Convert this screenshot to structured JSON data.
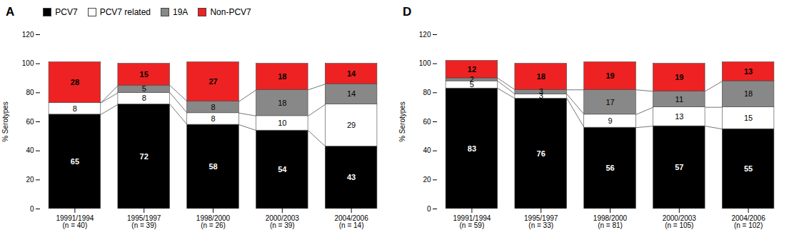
{
  "chart_data": [
    {
      "type": "bar",
      "stacked": true,
      "data_labels": true,
      "title": "A",
      "legend": "upper left",
      "categories": [
        "19991/1994\n(n = 40)",
        "1995/1997\n(n = 39)",
        "1998/2000\n(n = 26)",
        "2000/2003\n(n = 39)",
        "2004/2006\n(n = 14)"
      ],
      "series": [
        {
          "name": "PCV7",
          "color": "#000000",
          "values": [
            65,
            72,
            58,
            54,
            43
          ]
        },
        {
          "name": "PCV7 related",
          "color": "#ffffff",
          "values": [
            8,
            8,
            8,
            10,
            29
          ]
        },
        {
          "name": "19A",
          "color": "#888888",
          "values": [
            0,
            5,
            8,
            18,
            14
          ]
        },
        {
          "name": "Non-PCV7",
          "color": "#ee2222",
          "values": [
            28,
            15,
            27,
            18,
            14
          ]
        }
      ],
      "ylabel": "% Serotypes",
      "ylim": [
        0,
        120
      ],
      "yticks": [
        0,
        20,
        40,
        60,
        80,
        100,
        120
      ]
    },
    {
      "type": "bar",
      "stacked": true,
      "data_labels": true,
      "title": "D",
      "categories": [
        "19991/1994\n(n = 59)",
        "1995/1997\n(n = 33)",
        "1998/2000\n(n = 81)",
        "2000/2003\n(n = 105)",
        "2004/2006\n(n = 102)"
      ],
      "series": [
        {
          "name": "PCV7",
          "color": "#000000",
          "values": [
            83,
            76,
            56,
            57,
            55
          ]
        },
        {
          "name": "PCV7 related",
          "color": "#ffffff",
          "values": [
            5,
            3,
            9,
            13,
            15
          ]
        },
        {
          "name": "19A",
          "color": "#888888",
          "values": [
            2,
            3,
            17,
            11,
            18
          ]
        },
        {
          "name": "Non-PCV7",
          "color": "#ee2222",
          "values": [
            12,
            18,
            19,
            19,
            13
          ]
        }
      ],
      "ylabel": "% Serotypes",
      "ylim": [
        0,
        120
      ],
      "yticks": [
        0,
        20,
        40,
        60,
        80,
        100,
        120
      ]
    }
  ]
}
